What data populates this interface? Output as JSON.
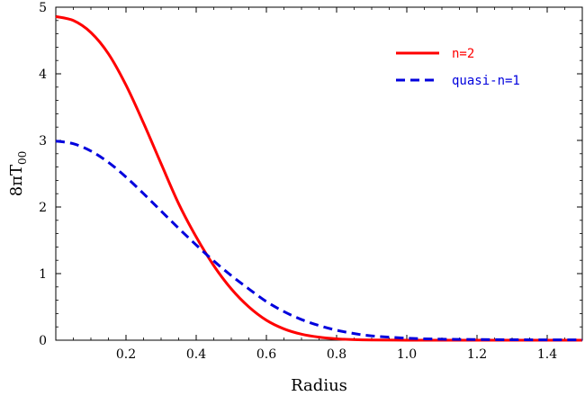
{
  "chart_data": {
    "type": "line",
    "xlabel": "Radius",
    "ylabel": {
      "main": "8πT",
      "sub": "00"
    },
    "xlim": [
      0,
      1.5
    ],
    "ylim": [
      0,
      5
    ],
    "xticks": [
      0.2,
      0.4,
      0.6,
      0.8,
      1.0,
      1.2,
      1.4
    ],
    "xtick_labels": [
      "0.2",
      "0.4",
      "0.6",
      "0.8",
      "1.0",
      "1.2",
      "1.4"
    ],
    "yticks": [
      0,
      1,
      2,
      3,
      4,
      5
    ],
    "ytick_labels": [
      "0",
      "1",
      "2",
      "3",
      "4",
      "5"
    ],
    "grid": false,
    "legend_position": "top-right",
    "series": [
      {
        "name": "n=2",
        "color": "#ff0000",
        "dash": "solid",
        "x": [
          0.0,
          0.05,
          0.1,
          0.15,
          0.2,
          0.25,
          0.3,
          0.35,
          0.4,
          0.45,
          0.5,
          0.55,
          0.6,
          0.65,
          0.7,
          0.75,
          0.8,
          0.85,
          0.9,
          1.0,
          1.1,
          1.2,
          1.3,
          1.4,
          1.5
        ],
        "y": [
          4.86,
          4.8,
          4.62,
          4.3,
          3.83,
          3.26,
          2.65,
          2.05,
          1.55,
          1.12,
          0.77,
          0.5,
          0.3,
          0.17,
          0.09,
          0.045,
          0.02,
          0.008,
          0.003,
          0.0005,
          0,
          0,
          0,
          0,
          0
        ]
      },
      {
        "name": "quasi-n=1",
        "color": "#0000dd",
        "dash": "dashed",
        "x": [
          0.0,
          0.05,
          0.1,
          0.15,
          0.2,
          0.25,
          0.3,
          0.35,
          0.4,
          0.45,
          0.5,
          0.55,
          0.6,
          0.65,
          0.7,
          0.75,
          0.8,
          0.85,
          0.9,
          1.0,
          1.1,
          1.2,
          1.3,
          1.4,
          1.5
        ],
        "y": [
          2.99,
          2.95,
          2.84,
          2.67,
          2.45,
          2.2,
          1.94,
          1.68,
          1.43,
          1.19,
          0.97,
          0.77,
          0.58,
          0.43,
          0.31,
          0.22,
          0.15,
          0.1,
          0.065,
          0.03,
          0.015,
          0.01,
          0.007,
          0.005,
          0.005
        ]
      }
    ]
  }
}
